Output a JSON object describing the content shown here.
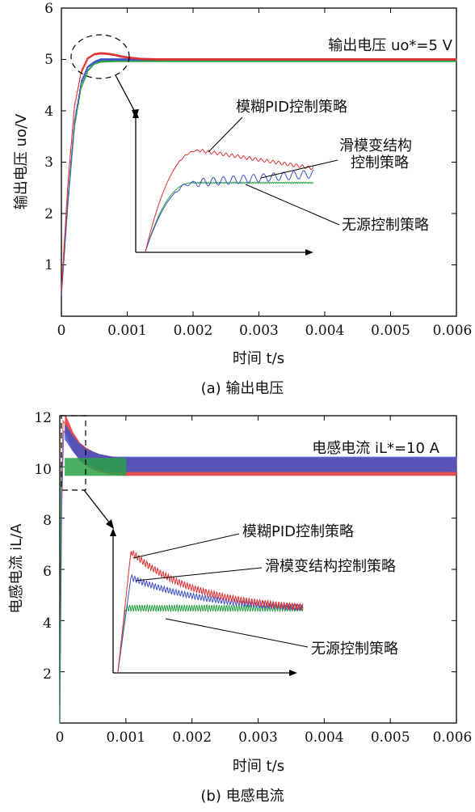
{
  "colors": {
    "fuzzy_pid": "#e03232",
    "sliding_mode": "#3f51c8",
    "passive": "#2aa048",
    "axis": "#000000"
  },
  "charts": [
    {
      "id": "a",
      "caption": "(a) 输出电压",
      "xlabel": "时间 t/s",
      "ylabel": "输出电压 uo/V",
      "xticks": [
        "0",
        "0.001",
        "0.002",
        "0.003",
        "0.004",
        "0.005",
        "0.006"
      ],
      "yticks": [
        "1",
        "2",
        "3",
        "4",
        "5",
        "6"
      ],
      "reference_label": "输出电压 uo*=5 V",
      "annotations": [
        "模糊PID控制策略",
        "滑模变结构",
        "控制策略",
        "无源控制策略"
      ]
    },
    {
      "id": "b",
      "caption": "(b) 电感电流",
      "xlabel": "时间 t/s",
      "ylabel": "电感电流 iL/A",
      "xticks": [
        "0",
        "0.001",
        "0.002",
        "0.003",
        "0.004",
        "0.005",
        "0.006"
      ],
      "yticks": [
        "2",
        "4",
        "6",
        "8",
        "10",
        "12"
      ],
      "reference_label": "电感电流 iL*=10 A",
      "annotations": [
        "模糊PID控制策略",
        "滑模变结构控制策略",
        "无源控制策略"
      ]
    }
  ],
  "chart_data": [
    {
      "type": "line",
      "xlabel": "时间 t/s",
      "ylabel": "输出电压 uo/V",
      "xlim": [
        0,
        0.006
      ],
      "ylim": [
        0,
        6
      ],
      "reference": 5,
      "series": [
        {
          "name": "模糊PID控制策略",
          "color": "#e03232",
          "x": [
            0,
            0.0001,
            0.0002,
            0.0003,
            0.0004,
            0.0005,
            0.0006,
            0.0007,
            0.0008,
            0.0009,
            0.001,
            0.0012,
            0.0015,
            0.002,
            0.003,
            0.004,
            0.005,
            0.006
          ],
          "y": [
            0.5,
            2.6,
            4.1,
            4.75,
            5.02,
            5.1,
            5.12,
            5.11,
            5.09,
            5.06,
            5.04,
            5.01,
            5.0,
            5.0,
            5.0,
            5.0,
            5.0,
            5.0
          ]
        },
        {
          "name": "滑模变结构控制策略",
          "color": "#3f51c8",
          "x": [
            0,
            0.0001,
            0.0002,
            0.0003,
            0.0004,
            0.0005,
            0.0006,
            0.0008,
            0.001,
            0.0015,
            0.002,
            0.003,
            0.004,
            0.005,
            0.006
          ],
          "y": [
            0.4,
            2.3,
            3.8,
            4.55,
            4.85,
            4.95,
            5.0,
            5.0,
            5.0,
            5.0,
            5.0,
            5.0,
            5.0,
            5.0,
            5.0
          ]
        },
        {
          "name": "无源控制策略",
          "color": "#2aa048",
          "x": [
            0,
            0.0001,
            0.0002,
            0.0003,
            0.0004,
            0.0005,
            0.0006,
            0.0008,
            0.001,
            0.0015,
            0.002,
            0.003,
            0.004,
            0.005,
            0.006
          ],
          "y": [
            0.4,
            2.2,
            3.7,
            4.45,
            4.78,
            4.92,
            4.96,
            4.97,
            4.97,
            4.97,
            4.97,
            4.97,
            4.97,
            4.97,
            4.97
          ]
        }
      ]
    },
    {
      "type": "line",
      "xlabel": "时间 t/s",
      "ylabel": "电感电流 iL/A",
      "xlim": [
        0,
        0.006
      ],
      "ylim": [
        0,
        12
      ],
      "reference": 10,
      "series": [
        {
          "name": "模糊PID控制策略",
          "color": "#e03232",
          "x": [
            0,
            3e-05,
            5e-05,
            0.0001,
            0.0002,
            0.0003,
            0.0004,
            0.0005,
            0.0006,
            0.0008,
            0.001,
            0.002,
            0.003,
            0.004,
            0.005,
            0.006
          ],
          "y": [
            0,
            9.5,
            11.8,
            11.6,
            11.0,
            10.6,
            10.4,
            10.25,
            10.15,
            10.05,
            10.0,
            10.0,
            10.0,
            10.0,
            10.0,
            10.0
          ]
        },
        {
          "name": "滑模变结构控制策略",
          "color": "#3f51c8",
          "x": [
            0,
            3e-05,
            6e-05,
            0.0001,
            0.0002,
            0.0003,
            0.0004,
            0.0005,
            0.0006,
            0.0008,
            0.001,
            0.002,
            0.003,
            0.004,
            0.005,
            0.006
          ],
          "y": [
            0,
            8.5,
            11.4,
            11.3,
            10.9,
            10.6,
            10.4,
            10.3,
            10.2,
            10.1,
            10.1,
            10.1,
            10.1,
            10.1,
            10.1,
            10.1
          ]
        },
        {
          "name": "无源控制策略",
          "color": "#2aa048",
          "x": [
            0,
            2e-05,
            4e-05,
            0.0001,
            0.0005,
            0.0008,
            0.001
          ],
          "y": [
            0,
            10.0,
            10.0,
            10.0,
            10.0,
            10.0,
            10.0
          ]
        }
      ]
    }
  ]
}
